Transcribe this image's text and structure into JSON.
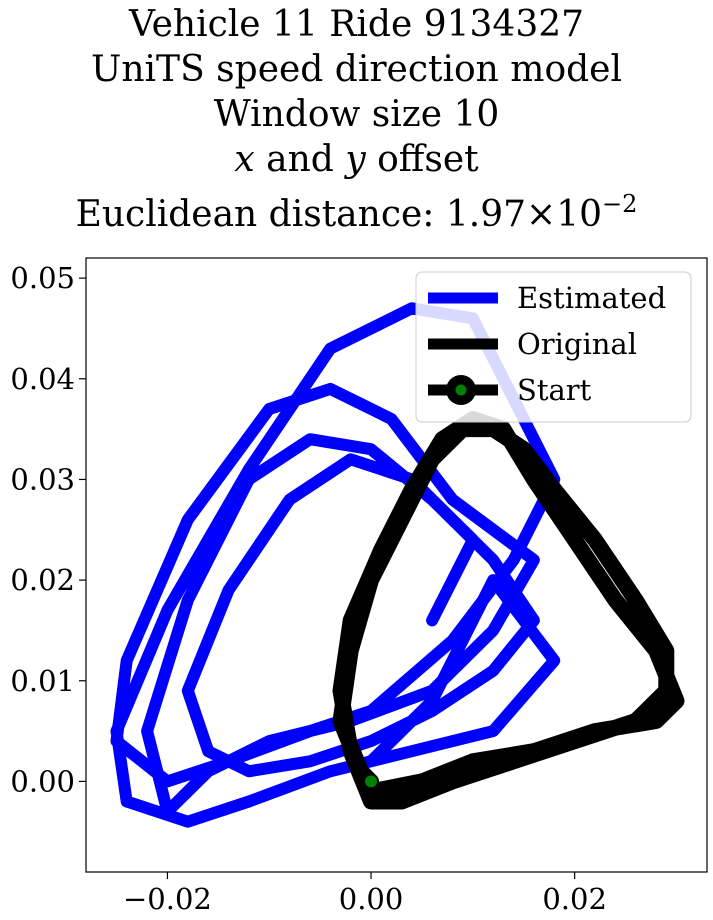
{
  "chart_data": {
    "type": "line",
    "title": {
      "line1": "Vehicle 11 Ride 9134327",
      "line2": "UniTS speed direction model",
      "line3": "Window size 10",
      "line4_var_x": "x",
      "line4_and": "and",
      "line4_var_y": "y",
      "line4_suffix": "offset",
      "line5_prefix": "Euclidean distance: 1.97",
      "line5_times": "×",
      "line5_base": "10",
      "line5_exp": "−2"
    },
    "xlabel": "",
    "ylabel": "",
    "xlim": [
      -0.028,
      0.033
    ],
    "ylim": [
      -0.009,
      0.052
    ],
    "x_ticks": [
      -0.02,
      0.0,
      0.02
    ],
    "x_tick_labels": [
      "−0.02",
      "0.00",
      "0.02"
    ],
    "y_ticks": [
      0.0,
      0.01,
      0.02,
      0.03,
      0.04,
      0.05
    ],
    "y_tick_labels": [
      "0.00",
      "0.01",
      "0.02",
      "0.03",
      "0.04",
      "0.05"
    ],
    "grid": false,
    "legend_position": "top-right",
    "legend": [
      {
        "label": "Estimated",
        "color": "#0000ff",
        "marker": false
      },
      {
        "label": "Original",
        "color": "#000000",
        "marker": false
      },
      {
        "label": "Start",
        "color": "#000000",
        "marker": true,
        "marker_color": "#008000"
      }
    ],
    "series": [
      {
        "name": "Estimated",
        "color": "#0000ff",
        "x": [
          0.0,
          0.006,
          0.012,
          0.018,
          0.012,
          0.004,
          -0.004,
          -0.012,
          -0.018,
          -0.024,
          -0.025,
          -0.02,
          -0.012,
          -0.004,
          0.004,
          0.01,
          0.014,
          0.018,
          0.014,
          0.008,
          0.0,
          -0.006,
          -0.014,
          -0.02,
          -0.025,
          -0.024,
          -0.018,
          -0.01,
          -0.004,
          0.002,
          0.008,
          0.016,
          0.012,
          0.006,
          -0.002,
          -0.01,
          -0.016,
          -0.02,
          -0.022,
          -0.018,
          -0.012,
          -0.006,
          0.0,
          0.006,
          0.012,
          0.016,
          0.012,
          0.006,
          0.0,
          -0.006,
          -0.012,
          -0.016,
          -0.018,
          -0.014,
          -0.008,
          -0.002,
          0.004,
          0.01,
          0.006
        ],
        "y": [
          0.002,
          0.008,
          0.02,
          0.012,
          0.005,
          0.003,
          0.001,
          -0.002,
          -0.004,
          -0.002,
          0.005,
          0.017,
          0.031,
          0.043,
          0.047,
          0.046,
          0.038,
          0.03,
          0.022,
          0.014,
          0.007,
          0.005,
          0.002,
          0.0,
          0.004,
          0.012,
          0.026,
          0.037,
          0.039,
          0.036,
          0.028,
          0.022,
          0.015,
          0.009,
          0.006,
          0.004,
          0.001,
          -0.003,
          0.005,
          0.018,
          0.03,
          0.034,
          0.033,
          0.028,
          0.022,
          0.016,
          0.011,
          0.007,
          0.004,
          0.002,
          0.001,
          0.003,
          0.009,
          0.019,
          0.028,
          0.032,
          0.03,
          0.024,
          0.016
        ]
      },
      {
        "name": "Original",
        "color": "#000000",
        "x": [
          0.0,
          0.005,
          0.01,
          0.016,
          0.022,
          0.028,
          0.03,
          0.028,
          0.024,
          0.02,
          0.016,
          0.013,
          0.01,
          0.007,
          0.004,
          0.001,
          -0.002,
          -0.003,
          -0.002,
          0.0,
          0.003,
          0.008,
          0.014,
          0.02,
          0.026,
          0.029,
          0.029,
          0.026,
          0.022,
          0.018,
          0.015,
          0.012,
          0.009,
          0.006,
          0.003,
          0.0,
          -0.002,
          -0.003,
          -0.001,
          0.0
        ],
        "y": [
          -0.001,
          0.0,
          0.002,
          0.003,
          0.005,
          0.006,
          0.008,
          0.013,
          0.018,
          0.024,
          0.03,
          0.035,
          0.036,
          0.034,
          0.029,
          0.023,
          0.016,
          0.009,
          0.003,
          -0.002,
          -0.002,
          0.0,
          0.002,
          0.004,
          0.006,
          0.009,
          0.013,
          0.018,
          0.024,
          0.029,
          0.033,
          0.035,
          0.035,
          0.032,
          0.026,
          0.02,
          0.013,
          0.006,
          0.001,
          0.0
        ]
      }
    ],
    "start_point": {
      "x": 0.0,
      "y": 0.0,
      "color": "#008000"
    }
  }
}
